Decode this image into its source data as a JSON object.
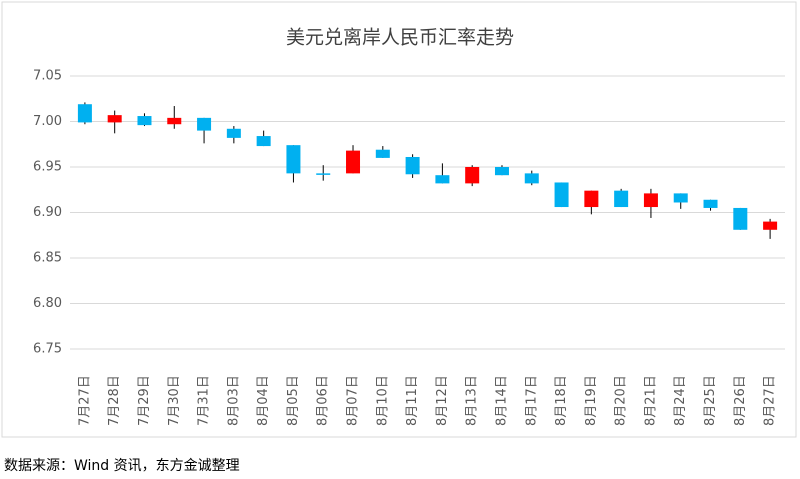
{
  "chart_data": {
    "type": "candlestick",
    "title": "美元兑离岸人民币汇率走势",
    "source": "数据来源：Wind 资讯，东方金诚整理",
    "categories": [
      "7月27日",
      "7月28日",
      "7月29日",
      "7月30日",
      "7月31日",
      "8月03日",
      "8月04日",
      "8月05日",
      "8月06日",
      "8月07日",
      "8月10日",
      "8月11日",
      "8月12日",
      "8月13日",
      "8月14日",
      "8月17日",
      "8月18日",
      "8月19日",
      "8月20日",
      "8月21日",
      "8月24日",
      "8月25日",
      "8月26日",
      "8月27日"
    ],
    "open": [
      7.019,
      6.999,
      7.006,
      6.997,
      7.004,
      6.992,
      6.984,
      6.974,
      6.943,
      6.943,
      6.969,
      6.961,
      6.941,
      6.932,
      6.95,
      6.943,
      6.933,
      6.906,
      6.924,
      6.906,
      6.921,
      6.914,
      6.905,
      6.881
    ],
    "high": [
      7.021,
      7.012,
      7.009,
      7.017,
      7.004,
      6.995,
      6.99,
      6.974,
      6.952,
      6.974,
      6.973,
      6.964,
      6.954,
      6.952,
      6.952,
      6.946,
      6.933,
      6.924,
      6.926,
      6.926,
      6.921,
      6.914,
      6.905,
      6.893
    ],
    "low": [
      6.997,
      6.987,
      6.995,
      6.992,
      6.976,
      6.976,
      6.973,
      6.933,
      6.935,
      6.943,
      6.96,
      6.938,
      6.932,
      6.929,
      6.941,
      6.93,
      6.906,
      6.898,
      6.906,
      6.894,
      6.904,
      6.902,
      6.881,
      6.871
    ],
    "close": [
      6.999,
      7.007,
      6.996,
      7.004,
      6.99,
      6.982,
      6.973,
      6.943,
      6.943,
      6.968,
      6.96,
      6.942,
      6.932,
      6.95,
      6.941,
      6.932,
      6.906,
      6.924,
      6.906,
      6.921,
      6.911,
      6.905,
      6.881,
      6.89
    ],
    "up_color": "#ff0000",
    "down_color": "#00b0f0",
    "ylim": [
      6.75,
      7.05
    ],
    "yticks": [
      {
        "value": 6.75,
        "label": "6.75"
      },
      {
        "value": 6.8,
        "label": "6.80"
      },
      {
        "value": 6.85,
        "label": "6.85"
      },
      {
        "value": 6.9,
        "label": "6.90"
      },
      {
        "value": 6.95,
        "label": "6.95"
      },
      {
        "value": 7,
        "label": "7.00"
      },
      {
        "value": 7.05,
        "label": "7.05"
      }
    ],
    "grid": true
  }
}
